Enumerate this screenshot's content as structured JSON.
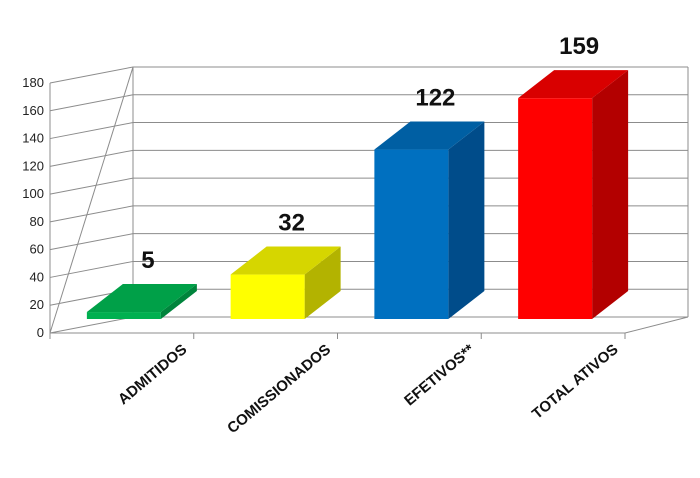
{
  "chart_data": {
    "type": "bar",
    "title": "",
    "xlabel": "",
    "ylabel": "",
    "ylim": [
      0,
      180
    ],
    "yticks": [
      0,
      20,
      40,
      60,
      80,
      100,
      120,
      140,
      160,
      180
    ],
    "grid": true,
    "legend": "none",
    "style": "3d-column",
    "categories": [
      "ADMITIDOS",
      "COMISSIONADOS",
      "EFETIVOS**",
      "TOTAL ATIVOS"
    ],
    "values": [
      5,
      32,
      122,
      159
    ],
    "value_labels": [
      "5",
      "32",
      "122",
      "159"
    ],
    "colors": [
      {
        "front": "#00b050",
        "side": "#00843c",
        "top": "#00a048"
      },
      {
        "front": "#ffff00",
        "side": "#b3b300",
        "top": "#d6d600"
      },
      {
        "front": "#0070c0",
        "side": "#004c8a",
        "top": "#005fa3"
      },
      {
        "front": "#ff0000",
        "side": "#b30000",
        "top": "#d90000"
      }
    ]
  }
}
